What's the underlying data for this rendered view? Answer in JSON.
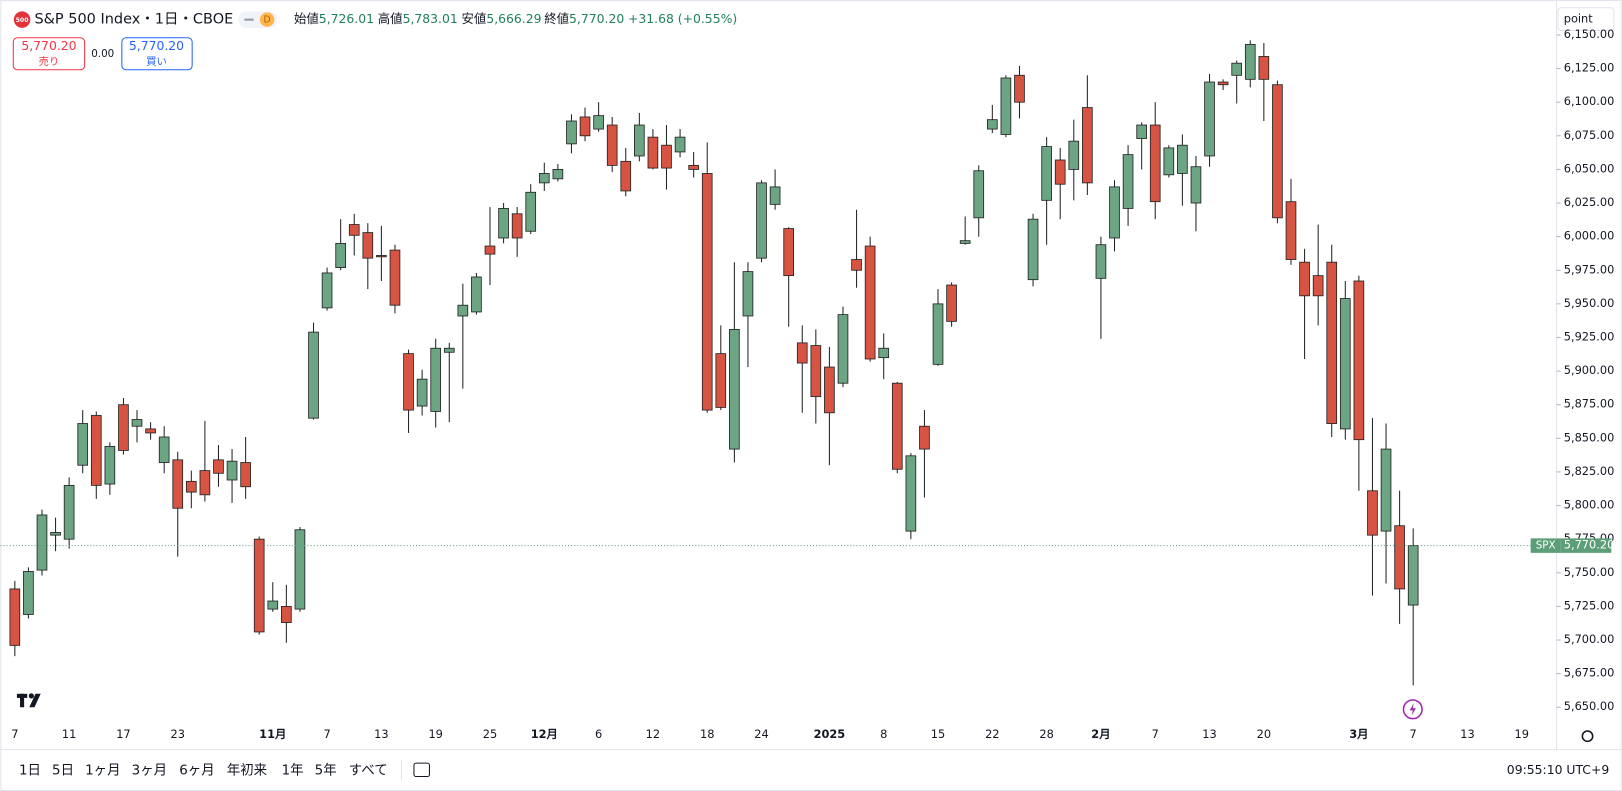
{
  "header": {
    "symbol_icon": "500",
    "title": "S&P 500 Index・1日・CBOE",
    "badge": "D",
    "ohlc": [
      {
        "label": "始値",
        "value": "5,726.01"
      },
      {
        "label": "高値",
        "value": "5,783.01"
      },
      {
        "label": "安値",
        "value": "5,666.29"
      },
      {
        "label": "終値",
        "value": "5,770.20"
      }
    ],
    "change": "+31.68 (+0.55%)"
  },
  "trade": {
    "sell_price": "5,770.20",
    "sell_label": "売り",
    "spread": "0.00",
    "buy_price": "5,770.20",
    "buy_label": "買い"
  },
  "chart_data": {
    "type": "candlestick",
    "up_color": "#6ba583",
    "down_color": "#d75442",
    "categories": [
      "7",
      null,
      null,
      null,
      "11",
      null,
      null,
      null,
      "17",
      null,
      null,
      null,
      "23",
      null,
      null,
      null,
      null,
      null,
      null,
      "11月",
      null,
      null,
      null,
      "7",
      null,
      null,
      null,
      "13",
      null,
      null,
      null,
      "19",
      null,
      null,
      null,
      "25",
      null,
      null,
      null,
      "12月",
      null,
      null,
      null,
      "6",
      null,
      null,
      null,
      "12",
      null,
      null,
      null,
      "18",
      null,
      null,
      null,
      "24",
      null,
      null,
      null,
      null,
      "2025",
      null,
      null,
      null,
      "8",
      null,
      null,
      null,
      "15",
      null,
      null,
      null,
      "22",
      null,
      null,
      null,
      "28",
      null,
      null,
      null,
      "2月",
      null,
      null,
      null,
      "7",
      null,
      null,
      null,
      "13",
      null,
      null,
      null,
      "20",
      null,
      null,
      null,
      null,
      null,
      null,
      "3月",
      null,
      null,
      null,
      "7",
      null,
      null,
      null,
      "13",
      null,
      null,
      null,
      "19"
    ],
    "open": [
      5738,
      5719,
      5752,
      5778,
      5775,
      5830,
      5867,
      5816,
      5875,
      5859,
      5857,
      5832,
      5834,
      5818,
      5826,
      5834,
      5819,
      5832,
      5775,
      5723,
      5725,
      5723,
      5865,
      5947,
      5977,
      6009,
      6003,
      5986,
      5990,
      5913,
      5874,
      5870,
      5914,
      5941,
      5944,
      5993,
      5999,
      6017,
      6004,
      6040,
      6043,
      6069,
      6089,
      6080,
      6083,
      6056,
      6060,
      6074,
      6068,
      6063,
      6053,
      6047,
      5913,
      5842,
      5941,
      5984,
      6024,
      6006,
      5921,
      5919,
      5903,
      5891,
      5983,
      5993,
      5910,
      5891,
      5781,
      5859,
      5905,
      5964,
      5995,
      6014,
      6080,
      6076,
      6120,
      5968,
      6027,
      6057,
      6050,
      6096,
      5969,
      5999,
      6021,
      6073,
      6083,
      6046,
      6047,
      6025,
      6060,
      6115,
      6120,
      6117,
      6134,
      6113,
      6026,
      5981,
      5971,
      5981,
      5857,
      5967,
      5811,
      5781,
      5785,
      5726.01,
      null,
      null,
      null,
      null,
      null,
      null,
      null,
      null
    ],
    "high": [
      5744,
      5754,
      5797,
      5791,
      5821,
      5871,
      5870,
      5847,
      5880,
      5871,
      5862,
      5859,
      5840,
      5826,
      5863,
      5845,
      5842,
      5851,
      5777,
      5743,
      5741,
      5784,
      5936,
      5977,
      6013,
      6017,
      6010,
      6008,
      5994,
      5916,
      5901,
      5924,
      5921,
      5965,
      5973,
      6022,
      6025,
      6022,
      6039,
      6055,
      6054,
      6091,
      6096,
      6100,
      6089,
      6066,
      6092,
      6080,
      6083,
      6080,
      6063,
      6070,
      5934,
      5981,
      5981,
      6042,
      6050,
      6007,
      5934,
      5931,
      5918,
      5948,
      6020,
      6000,
      5928,
      5892,
      5839,
      5871,
      5961,
      5966,
      6015,
      6053,
      6098,
      6120,
      6127,
      6017,
      6074,
      6066,
      6087,
      6120,
      6000,
      6042,
      6068,
      6085,
      6100,
      6068,
      6076,
      6060,
      6121,
      6117,
      6131,
      6146,
      6144,
      6116,
      6043,
      5991,
      6009,
      5994,
      5967,
      5971,
      5865,
      5861,
      5811,
      5783.01,
      null,
      null,
      null,
      null,
      null,
      null,
      null,
      null
    ],
    "low": [
      5688,
      5716,
      5748,
      5766,
      5768,
      5824,
      5805,
      5808,
      5838,
      5847,
      5849,
      5824,
      5762,
      5798,
      5803,
      5814,
      5802,
      5805,
      5704,
      5721,
      5698,
      5721,
      5864,
      5945,
      5975,
      5986,
      5961,
      5967,
      5943,
      5854,
      5867,
      5858,
      5862,
      5887,
      5942,
      5964,
      5995,
      5985,
      6002,
      6034,
      6041,
      6062,
      6071,
      6078,
      6048,
      6030,
      6056,
      6050,
      6035,
      6059,
      6044,
      5869,
      5871,
      5832,
      5903,
      5981,
      6020,
      5933,
      5869,
      5861,
      5830,
      5888,
      5962,
      5907,
      5894,
      5824,
      5775,
      5806,
      5904,
      5933,
      5994,
      6000,
      6077,
      6074,
      6088,
      5963,
      5994,
      6013,
      6027,
      6031,
      5924,
      5989,
      6008,
      6050,
      6013,
      6044,
      6023,
      6004,
      6052,
      6109,
      6099,
      6111,
      6086,
      6010,
      5979,
      5909,
      5934,
      5851,
      5849,
      5811,
      5733,
      5742,
      5712,
      5666.29,
      null,
      null,
      null,
      null,
      null,
      null,
      null,
      null
    ],
    "close": [
      5696,
      5751,
      5793,
      5780,
      5815,
      5861,
      5815,
      5844,
      5841,
      5864,
      5854,
      5851,
      5798,
      5810,
      5808,
      5824,
      5833,
      5814,
      5706,
      5729,
      5713,
      5782,
      5929,
      5973,
      5995,
      6001,
      5984,
      5985,
      5949,
      5871,
      5894,
      5917,
      5917,
      5949,
      5970,
      5987,
      6021,
      5999,
      6033,
      6047,
      6050,
      6086,
      6075,
      6090,
      6053,
      6034,
      6083,
      6051,
      6051,
      6074,
      6050,
      5871,
      5873,
      5931,
      5974,
      6040,
      6037,
      5971,
      5906,
      5881,
      5869,
      5942,
      5975,
      5909,
      5917,
      5827,
      5837,
      5842,
      5950,
      5937,
      5997,
      6049,
      6087,
      6118,
      6100,
      6013,
      6067,
      6039,
      6071,
      6040,
      5994,
      6037,
      6061,
      6083,
      6026,
      6066,
      6068,
      6052,
      6115,
      6113,
      6129,
      6143,
      6117,
      6014,
      5983,
      5956,
      5956,
      5861,
      5954,
      5849,
      5778,
      5842,
      5738,
      5770.2,
      null,
      null,
      null,
      null,
      null,
      null,
      null,
      null
    ],
    "ylim": [
      5640,
      6176
    ],
    "yticks": [
      {
        "value": 5650,
        "label": "5,650.00"
      },
      {
        "value": 5675,
        "label": "5,675.00"
      },
      {
        "value": 5700,
        "label": "5,700.00"
      },
      {
        "value": 5725,
        "label": "5,725.00"
      },
      {
        "value": 5750,
        "label": "5,750.00"
      },
      {
        "value": 5775,
        "label": "5,775.00"
      },
      {
        "value": 5800,
        "label": "5,800.00"
      },
      {
        "value": 5825,
        "label": "5,825.00"
      },
      {
        "value": 5850,
        "label": "5,850.00"
      },
      {
        "value": 5875,
        "label": "5,875.00"
      },
      {
        "value": 5900,
        "label": "5,900.00"
      },
      {
        "value": 5925,
        "label": "5,925.00"
      },
      {
        "value": 5950,
        "label": "5,950.00"
      },
      {
        "value": 5975,
        "label": "5,975.00"
      },
      {
        "value": 6000,
        "label": "6,000.00"
      },
      {
        "value": 6025,
        "label": "6,025.00"
      },
      {
        "value": 6050,
        "label": "6,050.00"
      },
      {
        "value": 6075,
        "label": "6,075.00"
      },
      {
        "value": 6100,
        "label": "6,100.00"
      },
      {
        "value": 6125,
        "label": "6,125.00"
      },
      {
        "value": 6150,
        "label": "6,150.00"
      }
    ],
    "last_price": {
      "label": "SPX",
      "value": 5770.2,
      "value_label": "5,770.20",
      "color": "#5c9e77"
    }
  },
  "toolbar": {
    "scale_mode": "point",
    "ranges": [
      "1日",
      "5日",
      "1ヶ月",
      "3ヶ月",
      "6ヶ月",
      "年初来",
      "1年",
      "5年",
      "すべて"
    ],
    "time": "09:55:10 UTC+9"
  }
}
